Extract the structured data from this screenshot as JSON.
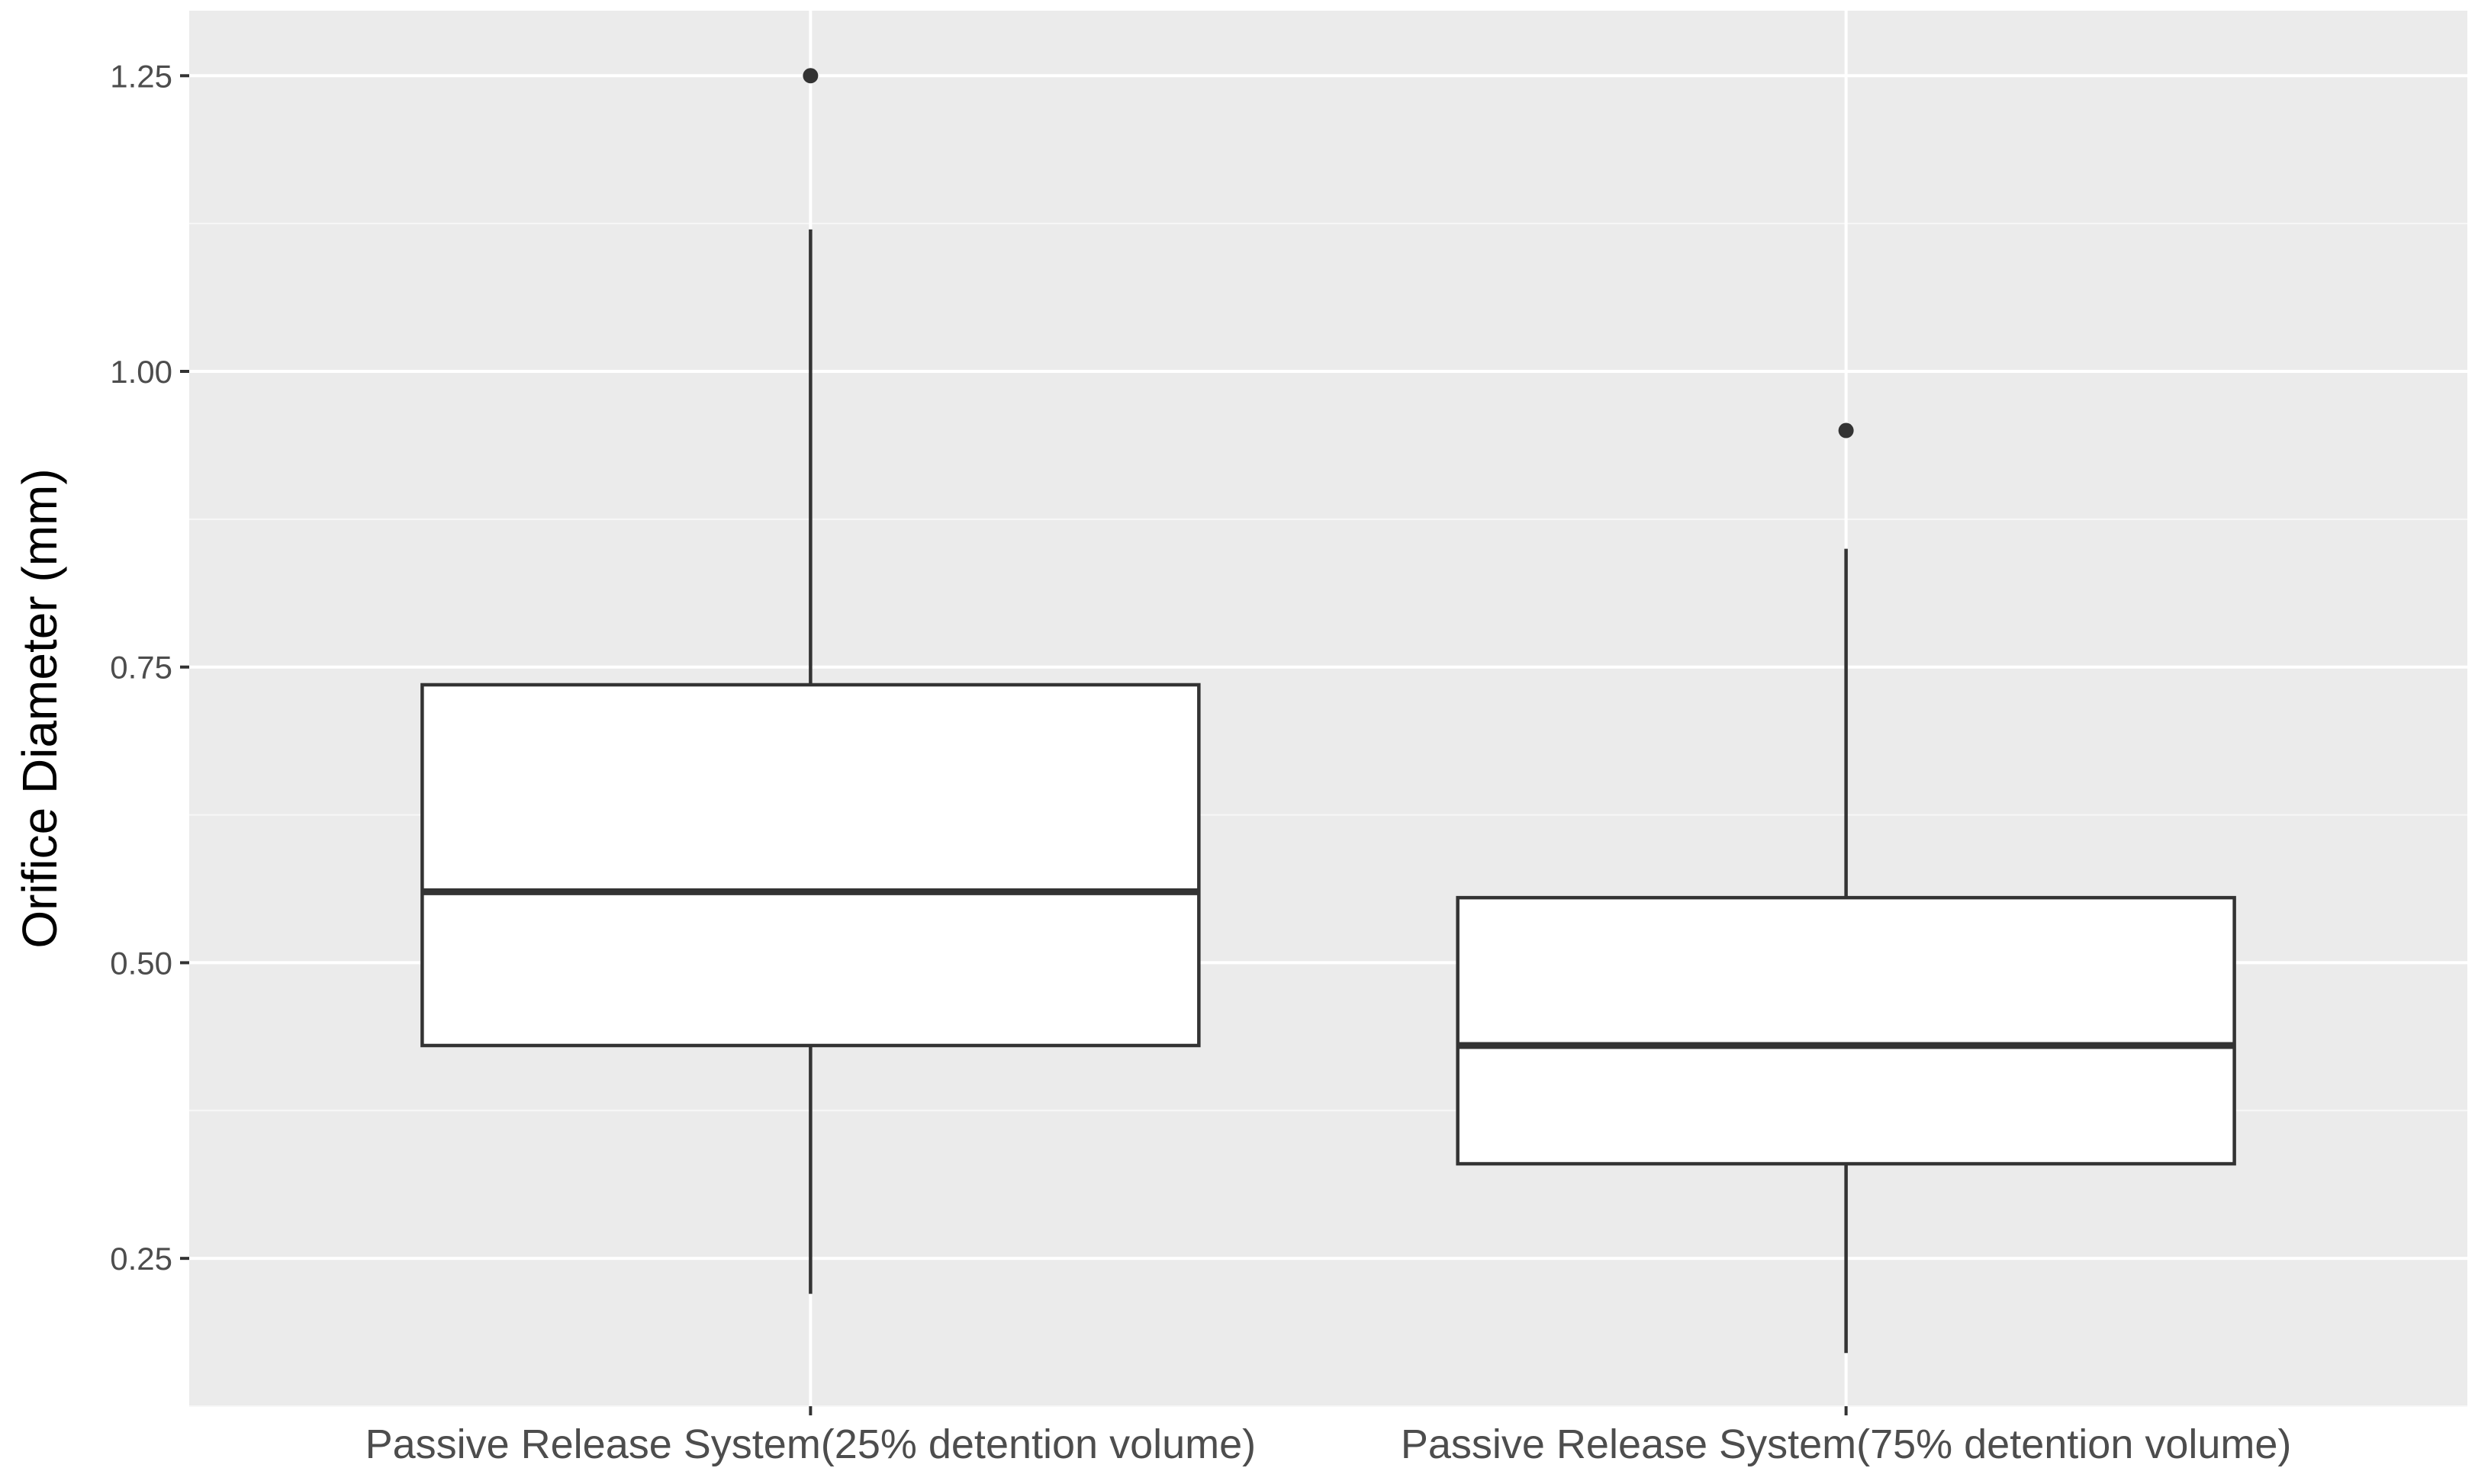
{
  "chart_data": {
    "type": "boxplot",
    "title": "",
    "xlabel": "",
    "ylabel": "Orifice Diameter (mm)",
    "ylim": [
      0.125,
      1.305
    ],
    "y_ticks": [
      0.25,
      0.5,
      0.75,
      1.0,
      1.25
    ],
    "y_tick_labels": [
      "0.25",
      "0.50",
      "0.75",
      "1.00",
      "1.25"
    ],
    "categories": [
      "Passive Release System(25% detention volume)",
      "Passive Release System(75% detention volume)"
    ],
    "boxes": [
      {
        "whisker_low": 0.22,
        "q1": 0.43,
        "median": 0.56,
        "q3": 0.735,
        "whisker_high": 1.12,
        "outliers": [
          1.25
        ]
      },
      {
        "whisker_low": 0.17,
        "q1": 0.33,
        "median": 0.43,
        "q3": 0.555,
        "whisker_high": 0.85,
        "outliers": [
          0.95
        ]
      }
    ],
    "grid": true,
    "legend": "none",
    "colors": {
      "panel_background": "#ebebeb",
      "grid_major": "#ffffff",
      "grid_minor": "#f7f7f7",
      "box_fill": "#ffffff",
      "box_stroke": "#333333",
      "tick_text": "#4d4d4d"
    }
  }
}
